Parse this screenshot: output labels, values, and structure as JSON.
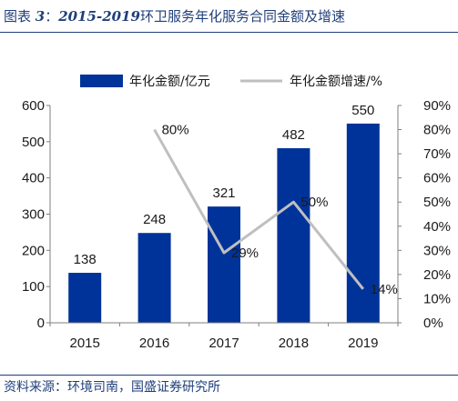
{
  "caption": {
    "label": "图表",
    "number": "3",
    "separator": "：",
    "years": "2015-2019",
    "text": "环卫服务年化服务合同金额及增速"
  },
  "source": "资料来源：环境司南，国盛证券研究所",
  "chart_data": {
    "type": "bar+line",
    "categories": [
      "2015",
      "2016",
      "2017",
      "2018",
      "2019"
    ],
    "series": [
      {
        "name": "年化金额/亿元",
        "type": "bar",
        "axis": "left",
        "color": "#003399",
        "values": [
          138,
          248,
          321,
          482,
          550
        ],
        "labels": [
          "138",
          "248",
          "321",
          "482",
          "550"
        ]
      },
      {
        "name": "年化金额增速/%",
        "type": "line",
        "axis": "right",
        "color": "#bfbfbf",
        "values": [
          null,
          80,
          29,
          50,
          14
        ],
        "labels": [
          "",
          "80%",
          "29%",
          "50%",
          "14%"
        ]
      }
    ],
    "y_left": {
      "min": 0,
      "max": 600,
      "ticks": [
        "0",
        "100",
        "200",
        "300",
        "400",
        "500",
        "600"
      ]
    },
    "y_right": {
      "min": 0,
      "max": 90,
      "ticks": [
        "0%",
        "10%",
        "20%",
        "30%",
        "40%",
        "50%",
        "60%",
        "70%",
        "80%",
        "90%"
      ]
    },
    "legend": "top",
    "grid": false
  }
}
